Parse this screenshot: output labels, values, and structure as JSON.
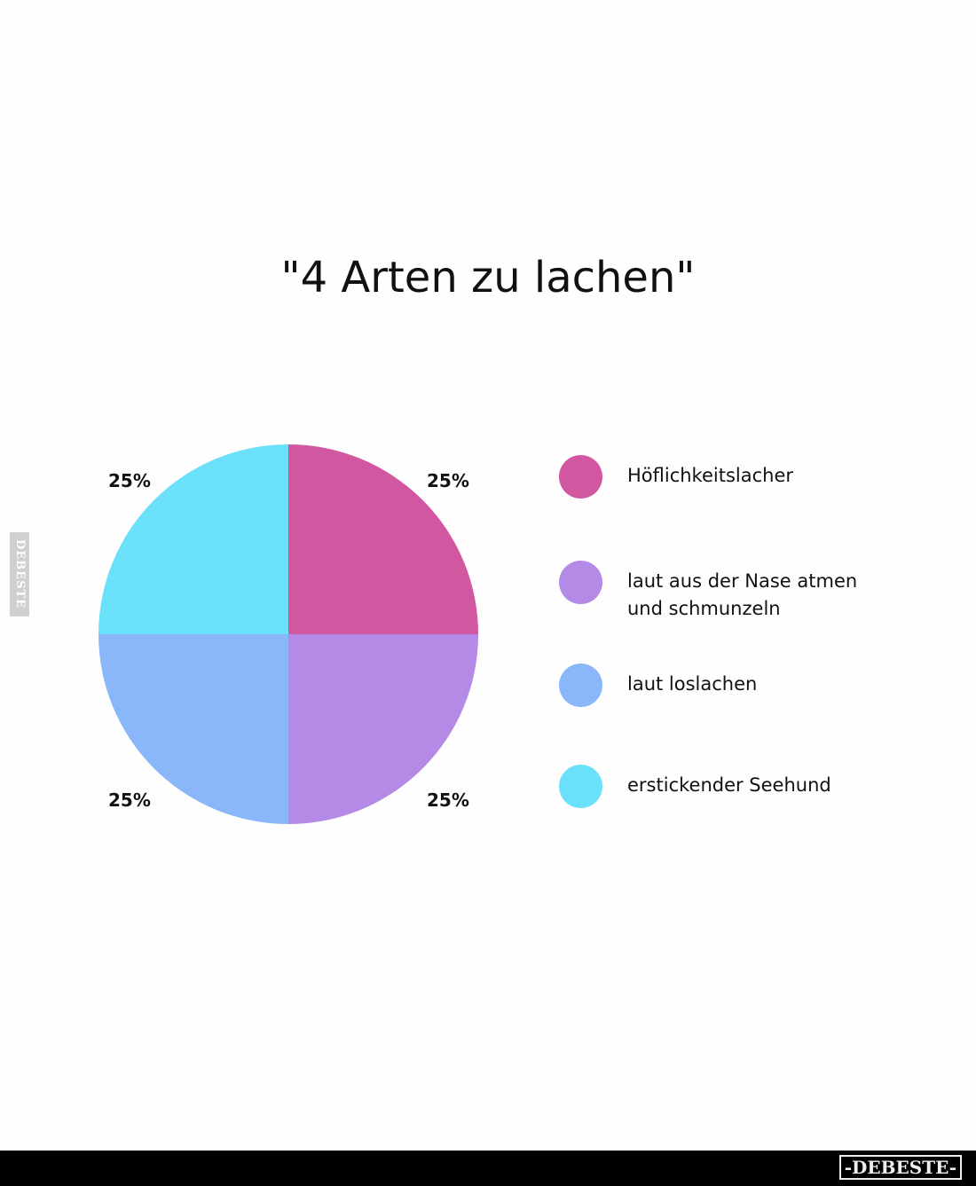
{
  "watermark_side": "DEBESTE",
  "footer_logo": "-DEBESTE-",
  "chart_data": {
    "type": "pie",
    "title": "\"4 Arten zu lachen\"",
    "categories": [
      "Höflichkeitslacher",
      "laut aus der Nase atmen und schmunzeln",
      "laut loslachen",
      "erstickender Seehund"
    ],
    "values": [
      25,
      25,
      25,
      25
    ],
    "data_labels": [
      "25%",
      "25%",
      "25%",
      "25%"
    ],
    "colors": [
      "#D257A1",
      "#B58AE6",
      "#8AB6FA",
      "#6BE0FA"
    ],
    "start_angle": "12 o'clock, clockwise",
    "legend_placement": "right"
  }
}
